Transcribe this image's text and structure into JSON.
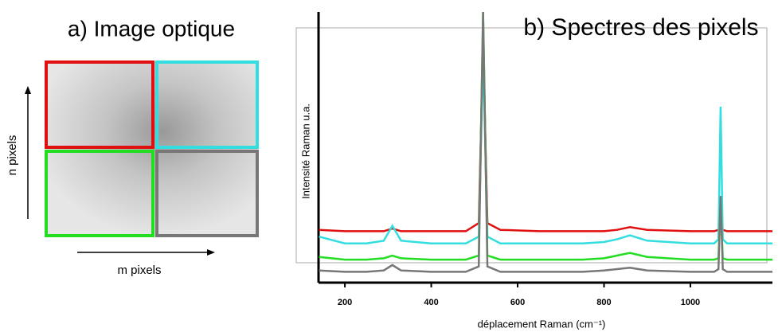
{
  "panel_a": {
    "title": "a) Image optique",
    "y_label": "n pixels",
    "x_label": "m pixels"
  },
  "chart_data": {
    "type": "line",
    "title": "b) Spectres des pixels",
    "x_label": "déplacement Raman (cm⁻¹)",
    "y_label": "Intensité Raman u.a.",
    "x": [
      140,
      200,
      250,
      290,
      310,
      330,
      400,
      480,
      510,
      520,
      530,
      560,
      650,
      750,
      800,
      830,
      860,
      900,
      1000,
      1055,
      1065,
      1070,
      1075,
      1085,
      1150,
      1190
    ],
    "series": [
      {
        "color": "#e01010",
        "values": [
          19.5,
          19,
          19,
          19,
          20,
          19,
          19,
          19,
          22,
          88,
          22,
          19.5,
          19,
          19,
          19,
          19.5,
          20.5,
          19.5,
          19,
          19,
          19.5,
          22,
          19.5,
          19,
          19,
          19
        ]
      },
      {
        "color": "#33dde0",
        "values": [
          17,
          14.5,
          14.5,
          15.5,
          21,
          15.5,
          14.5,
          14.5,
          17,
          85,
          17,
          14.5,
          14.5,
          14.5,
          15,
          16,
          17.5,
          15.5,
          14.5,
          14.5,
          16,
          65,
          16,
          14.5,
          14.5,
          14.5
        ]
      },
      {
        "color": "#22dd22",
        "values": [
          9.5,
          8.5,
          8.5,
          9,
          10,
          9,
          8.5,
          8.5,
          10,
          100,
          10,
          8.5,
          8.5,
          8.5,
          9,
          10,
          11,
          9.5,
          8.5,
          8.5,
          9,
          30,
          9,
          8.5,
          8.5,
          8.5
        ]
      },
      {
        "color": "#777777",
        "values": [
          4.5,
          4,
          4,
          4.5,
          6.5,
          4.5,
          4,
          4,
          6,
          100,
          6,
          4,
          4,
          4,
          4.5,
          5,
          5.5,
          4.5,
          4,
          4,
          5,
          32,
          5,
          4,
          4,
          4
        ]
      }
    ],
    "xlim": [
      139,
      1190
    ],
    "ylim": [
      0,
      100
    ],
    "xticks": [
      200,
      400,
      600,
      800,
      1000
    ]
  }
}
